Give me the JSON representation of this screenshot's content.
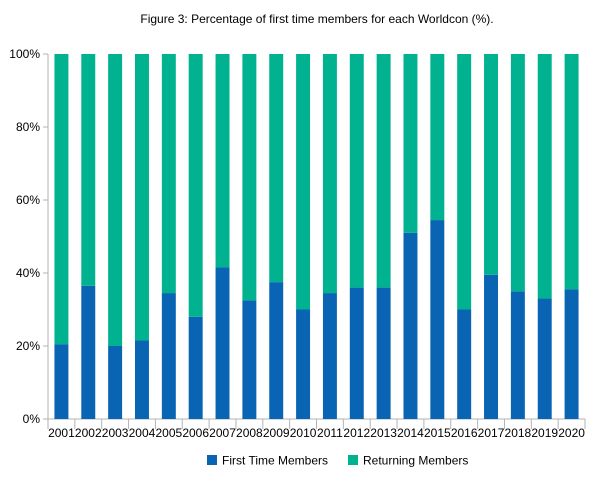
{
  "chart_data": {
    "type": "bar",
    "stacked": true,
    "title": "Figure 3: Percentage of first time members for each Worldcon (%).",
    "categories": [
      "2001",
      "2002",
      "2003",
      "2004",
      "2005",
      "2006",
      "2007",
      "2008",
      "2009",
      "2010",
      "2011",
      "2012",
      "2013",
      "2014",
      "2015",
      "2016",
      "2017",
      "2018",
      "2019",
      "2020"
    ],
    "series": [
      {
        "name": "First Time Members",
        "color": "#0a64b4",
        "values": [
          20.5,
          36.5,
          20,
          21.5,
          34.5,
          28,
          41.5,
          32.5,
          37.5,
          30,
          34.5,
          36,
          36,
          51,
          54.5,
          30,
          39.5,
          35,
          33,
          35.5
        ]
      },
      {
        "name": "Returning Members",
        "color": "#00b290",
        "values": [
          79.5,
          63.5,
          80,
          78.5,
          65.5,
          72,
          58.5,
          67.5,
          62.5,
          70,
          65.5,
          64,
          64,
          49,
          45.5,
          70,
          60.5,
          65,
          67,
          64.5
        ]
      }
    ],
    "y_ticks": [
      "0%",
      "20%",
      "40%",
      "60%",
      "80%",
      "100%"
    ],
    "y_tick_values": [
      0,
      20,
      40,
      60,
      80,
      100
    ],
    "ylim": [
      0,
      100
    ],
    "xlabel": "",
    "ylabel": "",
    "grid": false,
    "legend_position": "bottom"
  }
}
